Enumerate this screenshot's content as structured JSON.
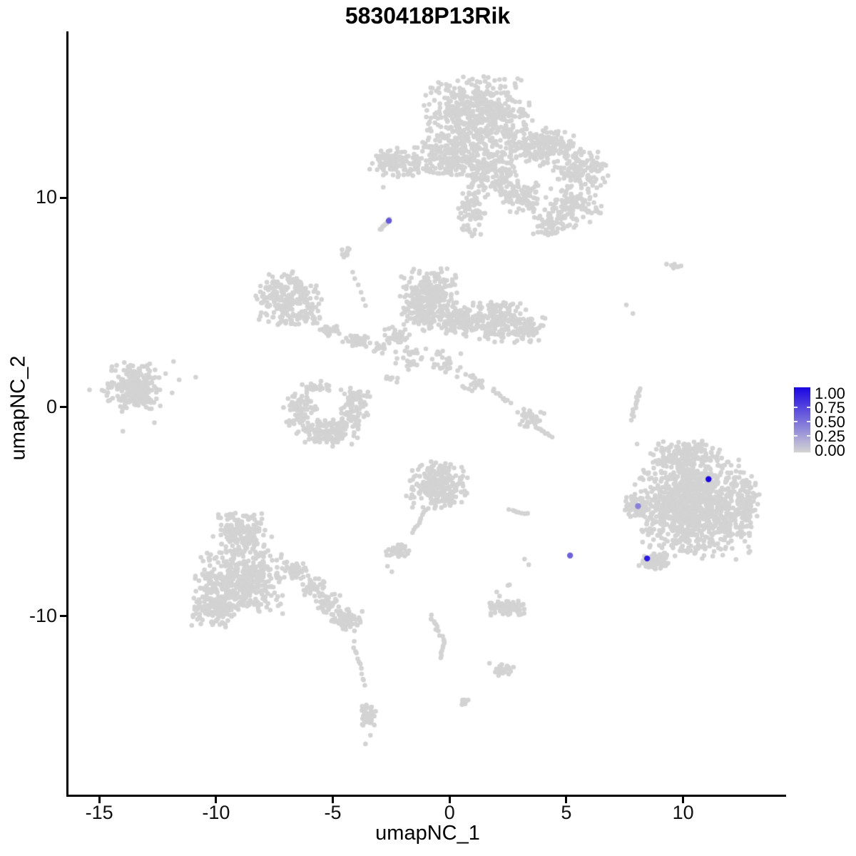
{
  "title": "5830418P13Rik",
  "chart_data": {
    "type": "scatter",
    "title": "5830418P13Rik",
    "xlabel": "umapNC_1",
    "ylabel": "umapNC_2",
    "xlim": [
      -16.35,
      14.35
    ],
    "ylim": [
      -18.57,
      17.93
    ],
    "grid": false,
    "x_ticks": [
      {
        "label": "-15",
        "value": -15
      },
      {
        "label": "-10",
        "value": -10
      },
      {
        "label": "-5",
        "value": -5
      },
      {
        "label": "0",
        "value": 0
      },
      {
        "label": "5",
        "value": 5
      },
      {
        "label": "10",
        "value": 10
      }
    ],
    "y_ticks": [
      {
        "label": "-10",
        "value": -10
      },
      {
        "label": "0",
        "value": 0
      },
      {
        "label": "10",
        "value": 10
      }
    ],
    "legend": {
      "position": "right",
      "labels": [
        "1.00",
        "0.75",
        "0.50",
        "0.25",
        "0.00"
      ],
      "values": [
        1.0,
        0.75,
        0.5,
        0.25,
        0.0
      ],
      "side_tick_values": [
        0.75,
        0.5,
        0.25
      ],
      "color_high": "#1B05E2",
      "color_low": "#D3D3D3"
    },
    "point_color_default": "#D3D3D3",
    "point_radius": 3.3,
    "highlight_radius": 4.2,
    "highlighted_cells": [
      {
        "x": -2.6,
        "y": 8.91,
        "value": 0.6
      },
      {
        "x": 11.09,
        "y": -3.45,
        "value": 1.0
      },
      {
        "x": 8.07,
        "y": -4.74,
        "value": 0.4
      },
      {
        "x": 8.46,
        "y": -7.24,
        "value": 0.9
      },
      {
        "x": 5.16,
        "y": -7.1,
        "value": 0.55
      }
    ],
    "clusters": [
      {
        "t": "b",
        "x": 1.16,
        "y": 13.99,
        "rx": 2.44,
        "ry": 1.88,
        "n": 520
      },
      {
        "t": "b",
        "x": 0.0,
        "y": 12.12,
        "rx": 1.68,
        "ry": 1.19,
        "n": 200
      },
      {
        "t": "b",
        "x": 1.83,
        "y": 11.26,
        "rx": 1.22,
        "ry": 1.54,
        "n": 180
      },
      {
        "t": "b",
        "x": 0.92,
        "y": 9.22,
        "rx": 0.67,
        "ry": 1.19,
        "n": 70
      },
      {
        "t": "b",
        "x": 3.97,
        "y": 12.46,
        "rx": 1.68,
        "ry": 1.02,
        "n": 200
      },
      {
        "t": "b",
        "x": 5.65,
        "y": 11.43,
        "rx": 1.37,
        "ry": 1.02,
        "n": 120
      },
      {
        "t": "b",
        "x": 5.19,
        "y": 9.56,
        "rx": 1.37,
        "ry": 1.19,
        "n": 110
      },
      {
        "t": "b",
        "x": 4.28,
        "y": 8.7,
        "rx": 0.76,
        "ry": 0.61,
        "n": 50
      },
      {
        "t": "b",
        "x": 3.05,
        "y": 10.07,
        "rx": 1.07,
        "ry": 0.96,
        "n": 80
      },
      {
        "t": "c",
        "p": [
          [
            -0.98,
            11.26
          ],
          [
            0.55,
            11.13
          ]
        ],
        "n": 12,
        "j": 0.08
      },
      {
        "t": "b",
        "x": -2.26,
        "y": 11.67,
        "rx": 1.1,
        "ry": 0.75,
        "n": 120
      },
      {
        "t": "d",
        "p": [
          [
            -3.42,
            11.37
          ],
          [
            -2.84,
            10.51
          ]
        ]
      },
      {
        "t": "c",
        "p": [
          [
            -2.99,
            8.46
          ],
          [
            -2.54,
            8.98
          ]
        ],
        "n": 10,
        "j": 0.06
      },
      {
        "t": "b",
        "x": -4.49,
        "y": 7.3,
        "rx": 0.24,
        "ry": 0.34,
        "n": 10
      },
      {
        "t": "d",
        "p": [
          [
            -4.15,
            6.45
          ],
          [
            -4.06,
            6.14
          ],
          [
            -3.91,
            5.84
          ],
          [
            -3.79,
            5.49
          ],
          [
            -3.7,
            5.15
          ],
          [
            -3.6,
            4.85
          ]
        ]
      },
      {
        "t": "b",
        "x": -6.87,
        "y": 5.12,
        "rx": 1.53,
        "ry": 1.43,
        "n": 240
      },
      {
        "t": "b",
        "x": -5.19,
        "y": 3.69,
        "rx": 0.55,
        "ry": 0.34,
        "n": 25
      },
      {
        "t": "b",
        "x": -3.97,
        "y": 3.17,
        "rx": 0.67,
        "ry": 0.34,
        "n": 30
      },
      {
        "t": "b",
        "x": -3.05,
        "y": 2.8,
        "rx": 0.43,
        "ry": 0.27,
        "n": 15
      },
      {
        "t": "b",
        "x": -0.86,
        "y": 5.12,
        "rx": 1.37,
        "ry": 1.64,
        "n": 330
      },
      {
        "t": "b",
        "x": 0.55,
        "y": 4.16,
        "rx": 0.92,
        "ry": 0.85,
        "n": 120
      },
      {
        "t": "b",
        "x": 2.14,
        "y": 4.1,
        "rx": 1.22,
        "ry": 1.09,
        "n": 180
      },
      {
        "t": "b",
        "x": 3.42,
        "y": 3.69,
        "rx": 0.67,
        "ry": 0.68,
        "n": 60
      },
      {
        "t": "b",
        "x": -2.29,
        "y": 3.41,
        "rx": 0.61,
        "ry": 0.51,
        "n": 40
      },
      {
        "t": "b",
        "x": -1.68,
        "y": 2.39,
        "rx": 0.76,
        "ry": 0.68,
        "n": 30
      },
      {
        "t": "b",
        "x": -0.15,
        "y": 2.05,
        "rx": 0.92,
        "ry": 0.85,
        "n": 30
      },
      {
        "t": "b",
        "x": 1.07,
        "y": 1.19,
        "rx": 0.61,
        "ry": 0.51,
        "n": 20
      },
      {
        "t": "c",
        "p": [
          [
            1.83,
            0.85
          ],
          [
            2.6,
            0.17
          ]
        ],
        "n": 10,
        "j": 0.1
      },
      {
        "t": "b",
        "x": 3.51,
        "y": -0.51,
        "rx": 0.67,
        "ry": 0.61,
        "n": 40
      },
      {
        "t": "c",
        "p": [
          [
            3.82,
            -1.02
          ],
          [
            4.34,
            -1.43
          ]
        ],
        "n": 8,
        "j": 0.08
      },
      {
        "t": "b",
        "x": -2.5,
        "y": 1.37,
        "rx": 0.37,
        "ry": 0.34,
        "n": 8
      },
      {
        "t": "b",
        "x": -6.41,
        "y": -0.07,
        "rx": 0.79,
        "ry": 1.37,
        "n": 90
      },
      {
        "t": "b",
        "x": -5.13,
        "y": -1.16,
        "rx": 1.28,
        "ry": 0.75,
        "n": 130
      },
      {
        "t": "b",
        "x": -4.06,
        "y": -0.07,
        "rx": 0.67,
        "ry": 1.09,
        "n": 85
      },
      {
        "t": "b",
        "x": -5.56,
        "y": 1.02,
        "rx": 0.67,
        "ry": 0.41,
        "n": 20
      },
      {
        "t": "b",
        "x": -13.5,
        "y": 1.02,
        "rx": 1.4,
        "ry": 1.37,
        "n": 240
      },
      {
        "t": "d",
        "p": [
          [
            -15.42,
            0.82
          ],
          [
            -11.82,
            2.18
          ],
          [
            -11.58,
            1.3
          ],
          [
            -10.87,
            1.43
          ],
          [
            -11.88,
            0.68
          ],
          [
            -12.64,
            -0.75
          ],
          [
            -13.99,
            -1.16
          ]
        ]
      },
      {
        "t": "b",
        "x": -0.49,
        "y": -3.75,
        "rx": 1.4,
        "ry": 1.23,
        "n": 260
      },
      {
        "t": "c",
        "p": [
          [
            -1.04,
            -4.91
          ],
          [
            -1.59,
            -6.01
          ]
        ],
        "n": 10,
        "j": 0.07
      },
      {
        "t": "b",
        "x": -2.2,
        "y": -6.89,
        "rx": 0.61,
        "ry": 0.41,
        "n": 40
      },
      {
        "t": "d",
        "p": [
          [
            -2.66,
            -7.61
          ],
          [
            -2.47,
            -7.88
          ]
        ]
      },
      {
        "t": "c",
        "p": [
          [
            2.57,
            -4.91
          ],
          [
            3.3,
            -5.08
          ]
        ],
        "n": 8,
        "j": 0.06
      },
      {
        "t": "d",
        "p": [
          [
            3.21,
            -7.27
          ],
          [
            3.39,
            -7.54
          ],
          [
            2.5,
            -8.53
          ]
        ]
      },
      {
        "t": "b",
        "x": -8.86,
        "y": -6.08,
        "rx": 1.28,
        "ry": 1.09,
        "n": 180
      },
      {
        "t": "b",
        "x": -8.92,
        "y": -8.36,
        "rx": 2.08,
        "ry": 1.64,
        "n": 430
      },
      {
        "t": "b",
        "x": -10.08,
        "y": -9.62,
        "rx": 1.16,
        "ry": 0.96,
        "n": 140
      },
      {
        "t": "b",
        "x": -6.57,
        "y": -7.85,
        "rx": 0.61,
        "ry": 0.48,
        "n": 40
      },
      {
        "t": "b",
        "x": -5.8,
        "y": -8.6,
        "rx": 0.61,
        "ry": 0.48,
        "n": 40
      },
      {
        "t": "b",
        "x": -5.13,
        "y": -9.39,
        "rx": 0.61,
        "ry": 0.48,
        "n": 40
      },
      {
        "t": "b",
        "x": -4.43,
        "y": -10.17,
        "rx": 0.79,
        "ry": 0.55,
        "n": 80
      },
      {
        "t": "c",
        "p": [
          [
            -4.12,
            -11.26
          ],
          [
            -3.6,
            -13.31
          ]
        ],
        "n": 12,
        "j": 0.1
      },
      {
        "t": "b",
        "x": -3.48,
        "y": -14.68,
        "rx": 0.37,
        "ry": 0.68,
        "n": 45
      },
      {
        "t": "d",
        "p": [
          [
            -3.39,
            -15.7
          ],
          [
            -3.6,
            -16.11
          ]
        ]
      },
      {
        "t": "c",
        "p": [
          [
            -0.82,
            -9.97
          ],
          [
            -0.55,
            -10.58
          ],
          [
            -0.24,
            -11.26
          ],
          [
            -0.37,
            -12.01
          ]
        ],
        "n": 20,
        "j": 0.09
      },
      {
        "t": "b",
        "x": 2.38,
        "y": -12.56,
        "rx": 0.43,
        "ry": 0.31,
        "n": 28
      },
      {
        "t": "d",
        "p": [
          [
            1.71,
            -12.25
          ]
        ]
      },
      {
        "t": "b",
        "x": 0.64,
        "y": -14.1,
        "rx": 0.24,
        "ry": 0.2,
        "n": 10
      },
      {
        "t": "b",
        "x": 2.5,
        "y": -9.62,
        "rx": 0.92,
        "ry": 0.38,
        "n": 90
      },
      {
        "t": "d",
        "p": [
          [
            2.02,
            -8.84
          ],
          [
            2.14,
            -9.04
          ],
          [
            2.57,
            -8.5
          ]
        ]
      },
      {
        "t": "b",
        "x": 10.54,
        "y": -4.85,
        "rx": 2.69,
        "ry": 2.46,
        "n": 1150
      },
      {
        "t": "b",
        "x": 10.14,
        "y": -2.32,
        "rx": 1.68,
        "ry": 0.75,
        "n": 180
      },
      {
        "t": "b",
        "x": 7.94,
        "y": -4.71,
        "rx": 0.49,
        "ry": 0.61,
        "n": 55
      },
      {
        "t": "b",
        "x": 8.8,
        "y": -7.37,
        "rx": 0.73,
        "ry": 0.48,
        "n": 70
      },
      {
        "t": "b",
        "x": 12.77,
        "y": -4.44,
        "rx": 0.55,
        "ry": 1.19,
        "n": 50
      },
      {
        "t": "c",
        "p": [
          [
            8.16,
            0.92
          ],
          [
            7.82,
            -0.61
          ]
        ],
        "n": 14,
        "j": 0.07
      },
      {
        "t": "d",
        "p": [
          [
            8.03,
            -1.77
          ],
          [
            7.57,
            4.88
          ],
          [
            7.85,
            4.47
          ]
        ]
      },
      {
        "t": "b",
        "x": 9.59,
        "y": 6.76,
        "rx": 0.37,
        "ry": 0.17,
        "n": 8
      }
    ]
  }
}
